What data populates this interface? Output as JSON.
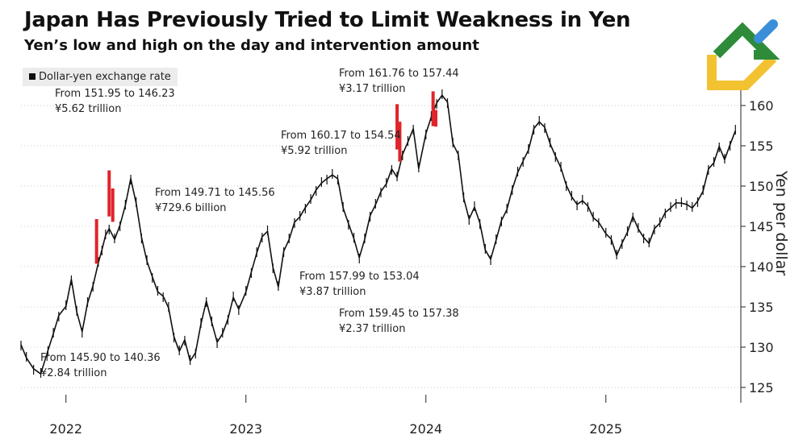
{
  "title": "Japan Has Previously Tried to Limit Weakness in Yen",
  "subtitle": "Yen’s low and high on the day and intervention amount",
  "legend": {
    "label": "Dollar-yen exchange rate"
  },
  "annotations": [
    {
      "line1": "From 151.95 to 146.23",
      "line2": "¥5.62 trillion"
    },
    {
      "line1": "From 149.71 to 145.56",
      "line2": "¥729.6 billion"
    },
    {
      "line1": "From 145.90 to 140.36",
      "line2": "¥2.84 trillion"
    },
    {
      "line1": "From 160.17 to 154.54",
      "line2": "¥5.92 trillion"
    },
    {
      "line1": "From 161.76 to 157.44",
      "line2": "¥3.17 trillion"
    },
    {
      "line1": "From 157.99 to 153.04",
      "line2": "¥3.87 trillion"
    },
    {
      "line1": "From 159.45 to 157.38",
      "line2": "¥2.37 trillion"
    }
  ],
  "colors": {
    "series": "#111111",
    "intervention": "#e0242b",
    "grid": "#cccccc",
    "axis": "#222222",
    "logo_green": "#2e8b3a",
    "logo_yellow": "#f2c230",
    "logo_blue": "#3a8fd8"
  },
  "chart_data": {
    "type": "line",
    "title": "Japan Has Previously Tried to Limit Weakness in Yen",
    "xlabel": "",
    "ylabel": "Yen per dollar",
    "xlim": [
      2021.75,
      2025.75
    ],
    "ylim": [
      122,
      168
    ],
    "y_ticks": [
      125,
      130,
      135,
      140,
      145,
      150,
      155,
      160
    ],
    "x_ticks": [
      2022,
      2023,
      2024,
      2025
    ],
    "x_tick_labels": [
      "2022",
      "2023",
      "2024",
      "2025"
    ],
    "grid": "horizontal-dotted",
    "legend_position": "top-left",
    "series": [
      {
        "name": "Dollar-yen exchange rate",
        "x": [
          2021.75,
          2021.78,
          2021.82,
          2021.86,
          2021.9,
          2021.93,
          2021.96,
          2022.0,
          2022.03,
          2022.06,
          2022.09,
          2022.12,
          2022.15,
          2022.18,
          2022.2,
          2022.22,
          2022.24,
          2022.27,
          2022.3,
          2022.33,
          2022.36,
          2022.39,
          2022.42,
          2022.45,
          2022.48,
          2022.51,
          2022.54,
          2022.57,
          2022.6,
          2022.63,
          2022.66,
          2022.69,
          2022.72,
          2022.75,
          2022.78,
          2022.81,
          2022.84,
          2022.87,
          2022.9,
          2022.93,
          2022.96,
          2023.0,
          2023.03,
          2023.06,
          2023.09,
          2023.12,
          2023.15,
          2023.18,
          2023.21,
          2023.24,
          2023.27,
          2023.3,
          2023.33,
          2023.36,
          2023.39,
          2023.42,
          2023.45,
          2023.48,
          2023.51,
          2023.54,
          2023.57,
          2023.6,
          2023.63,
          2023.66,
          2023.69,
          2023.72,
          2023.75,
          2023.78,
          2023.81,
          2023.84,
          2023.87,
          2023.9,
          2023.93,
          2023.96,
          2024.0,
          2024.03,
          2024.06,
          2024.09,
          2024.12,
          2024.15,
          2024.18,
          2024.21,
          2024.24,
          2024.27,
          2024.3,
          2024.33,
          2024.36,
          2024.39,
          2024.42,
          2024.45,
          2024.48,
          2024.51,
          2024.54,
          2024.57,
          2024.6,
          2024.63,
          2024.66,
          2024.69,
          2024.72,
          2024.75,
          2024.78,
          2024.81,
          2024.84,
          2024.87,
          2024.9,
          2024.93,
          2024.96,
          2025.0,
          2025.03,
          2025.06,
          2025.09,
          2025.12,
          2025.15,
          2025.18,
          2025.21,
          2025.24,
          2025.27,
          2025.3,
          2025.33,
          2025.36,
          2025.39,
          2025.42,
          2025.45,
          2025.48,
          2025.51,
          2025.54,
          2025.57,
          2025.6,
          2025.63,
          2025.66,
          2025.69,
          2025.72
        ],
        "values": [
          130.2,
          128.8,
          127.2,
          126.8,
          129.5,
          131.8,
          133.8,
          135.2,
          138.3,
          134.5,
          131.8,
          135.6,
          137.5,
          140.6,
          142.0,
          144.0,
          144.6,
          143.5,
          145.0,
          147.7,
          150.8,
          148.0,
          143.5,
          140.8,
          138.6,
          137.0,
          136.2,
          135.0,
          131.2,
          129.6,
          130.8,
          128.4,
          129.2,
          133.0,
          135.6,
          133.2,
          130.5,
          131.8,
          133.4,
          136.3,
          134.6,
          137.0,
          139.2,
          141.8,
          143.6,
          144.5,
          139.8,
          137.6,
          141.8,
          143.5,
          145.4,
          146.3,
          147.2,
          148.4,
          149.4,
          150.5,
          150.8,
          151.5,
          150.8,
          147.4,
          145.2,
          143.6,
          141.0,
          143.5,
          146.2,
          147.8,
          149.2,
          150.4,
          152.0,
          151.2,
          153.8,
          155.6,
          157.0,
          152.3,
          156.4,
          158.7,
          160.2,
          161.4,
          160.3,
          155.4,
          153.8,
          148.6,
          145.8,
          147.5,
          145.3,
          142.2,
          140.8,
          143.4,
          145.6,
          147.2,
          149.5,
          151.8,
          153.0,
          154.6,
          157.0,
          158.1,
          157.2,
          155.4,
          153.6,
          152.4,
          150.0,
          148.8,
          147.6,
          148.3,
          147.4,
          146.2,
          145.4,
          144.2,
          143.3,
          141.5,
          142.8,
          144.4,
          146.1,
          144.8,
          143.5,
          143.0,
          144.6,
          145.5,
          146.6,
          147.4,
          147.8,
          148.0,
          147.6,
          147.4,
          148.0,
          149.5,
          152.0,
          153.0,
          154.8,
          153.4,
          155.0,
          157.0
        ]
      }
    ],
    "interventions": [
      {
        "x": 2022.17,
        "high": 145.9,
        "low": 140.36
      },
      {
        "x": 2022.24,
        "high": 151.95,
        "low": 146.23
      },
      {
        "x": 2022.26,
        "high": 149.71,
        "low": 145.56
      },
      {
        "x": 2023.84,
        "high": 160.17,
        "low": 154.54
      },
      {
        "x": 2023.855,
        "high": 157.99,
        "low": 153.04
      },
      {
        "x": 2024.04,
        "high": 161.76,
        "low": 157.44
      },
      {
        "x": 2024.055,
        "high": 159.45,
        "low": 157.38
      }
    ]
  }
}
